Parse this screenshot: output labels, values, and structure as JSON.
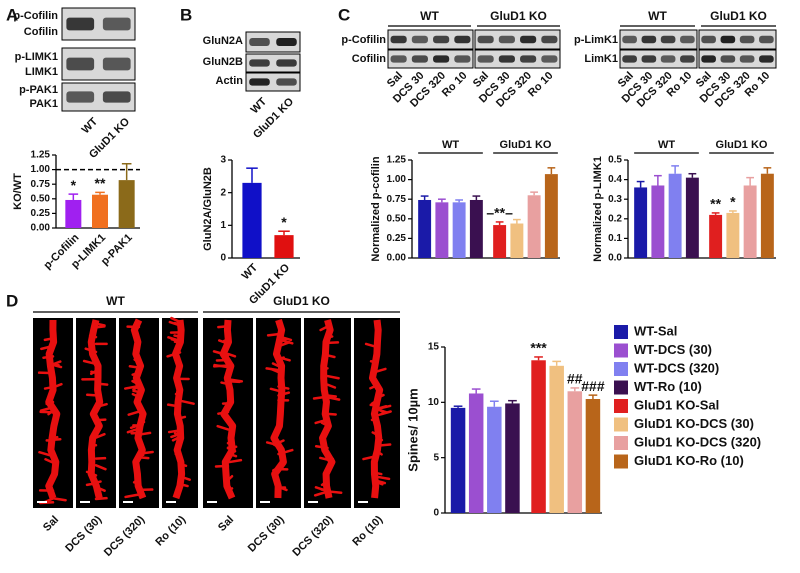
{
  "panel_labels": {
    "a": "A",
    "b": "B",
    "c": "C",
    "d": "D"
  },
  "blot_a": {
    "rows": [
      "p-Cofilin",
      "Cofilin",
      "p-LIMK1",
      "LIMK1",
      "p-PAK1",
      "PAK1"
    ],
    "lanes": [
      "WT",
      "GluD1 KO"
    ]
  },
  "blot_b": {
    "rows": [
      "GluN2A",
      "GluN2B",
      "Actin"
    ],
    "lanes": [
      "WT",
      "GluD1 KO"
    ]
  },
  "blot_c": [
    {
      "groups": [
        "WT",
        "GluD1 KO"
      ],
      "rows": [
        "p-Cofilin",
        "Cofilin"
      ],
      "lanes": [
        "Sal",
        "DCS 30",
        "DCS 320",
        "Ro 10",
        "Sal",
        "DCS 30",
        "DCS 320",
        "Ro 10"
      ]
    },
    {
      "groups": [
        "WT",
        "GluD1 KO"
      ],
      "rows": [
        "p-LimK1",
        "LimK1"
      ],
      "lanes": [
        "Sal",
        "DCS 30",
        "DCS 320",
        "Ro 10",
        "Sal",
        "DCS 30",
        "DCS 320",
        "Ro 10"
      ]
    }
  ],
  "images_d": {
    "groups": [
      "WT",
      "GluD1 KO"
    ],
    "lanes": [
      "Sal",
      "DCS (30)",
      "DCS (320)",
      "Ro (10)",
      "Sal",
      "DCS (30)",
      "DCS (320)",
      "Ro (10)"
    ]
  },
  "chart_data": [
    {
      "type": "bar",
      "ylabel": "KO/WT",
      "categories": [
        "p-Cofilin",
        "p-LIMK1",
        "p-PAK1"
      ],
      "values": [
        0.48,
        0.57,
        0.82
      ],
      "errors": [
        0.1,
        0.04,
        0.28
      ],
      "colors": [
        "#a020f0",
        "#f07020",
        "#8b6a1a"
      ],
      "ylim": [
        0,
        1.25
      ],
      "yticks": [
        {
          "value": 0,
          "label": "0.00"
        },
        {
          "value": 0.25,
          "label": "0.25"
        },
        {
          "value": 0.5,
          "label": "0.50"
        },
        {
          "value": 0.75,
          "label": "0.75"
        },
        {
          "value": 1,
          "label": "1.00"
        },
        {
          "value": 1.25,
          "label": "1.25"
        }
      ],
      "reference_line": 1,
      "significance": [
        "*",
        "**",
        null
      ]
    },
    {
      "type": "bar",
      "ylabel": "GluN2A/GluN2B",
      "categories": [
        "WT",
        "GluD1 KO"
      ],
      "values": [
        2.3,
        0.7
      ],
      "errors": [
        0.45,
        0.12
      ],
      "colors": [
        "#1010c8",
        "#e01010"
      ],
      "ylim": [
        0,
        3
      ],
      "yticks": [
        0,
        1,
        2,
        3
      ],
      "significance": [
        null,
        "*"
      ]
    },
    {
      "type": "bar",
      "ylabel": "Normalized p-cofilin",
      "groups": [
        "WT",
        "GluD1 KO"
      ],
      "values": [
        0.74,
        0.71,
        0.71,
        0.74,
        0.42,
        0.44,
        0.8,
        1.07
      ],
      "errors": [
        0.05,
        0.04,
        0.03,
        0.05,
        0.04,
        0.05,
        0.04,
        0.08
      ],
      "colors": [
        "#1a1aa8",
        "#9b4fd0",
        "#8080f0",
        "#3a1050",
        "#e01f1f",
        "#f0c080",
        "#e8a0a0",
        "#b8651a"
      ],
      "ylim": [
        0,
        1.25
      ],
      "yticks": [
        {
          "value": 0,
          "label": "0.00"
        },
        {
          "value": 0.25,
          "label": "0.25"
        },
        {
          "value": 0.5,
          "label": "0.50"
        },
        {
          "value": 0.75,
          "label": "0.75"
        },
        {
          "value": 1,
          "label": "1.00"
        },
        {
          "value": 1.25,
          "label": "1.25"
        }
      ],
      "significance": [
        null,
        null,
        null,
        null,
        "–**–",
        null,
        null,
        null
      ]
    },
    {
      "type": "bar",
      "ylabel": "Normalized p-LIMK1",
      "groups": [
        "WT",
        "GluD1 KO"
      ],
      "values": [
        0.36,
        0.37,
        0.43,
        0.41,
        0.22,
        0.23,
        0.37,
        0.43
      ],
      "errors": [
        0.03,
        0.05,
        0.04,
        0.02,
        0.01,
        0.01,
        0.04,
        0.03
      ],
      "colors": [
        "#1a1aa8",
        "#9b4fd0",
        "#8080f0",
        "#3a1050",
        "#e01f1f",
        "#f0c080",
        "#e8a0a0",
        "#b8651a"
      ],
      "ylim": [
        0,
        0.5
      ],
      "yticks": [
        {
          "value": 0,
          "label": "0.0"
        },
        {
          "value": 0.1,
          "label": "0.1"
        },
        {
          "value": 0.2,
          "label": "0.2"
        },
        {
          "value": 0.3,
          "label": "0.3"
        },
        {
          "value": 0.4,
          "label": "0.4"
        },
        {
          "value": 0.5,
          "label": "0.5"
        }
      ],
      "significance": [
        null,
        null,
        null,
        null,
        "**",
        "*",
        null,
        null
      ]
    },
    {
      "type": "bar",
      "ylabel": "Spines/ 10µm",
      "values": [
        9.5,
        10.8,
        9.6,
        9.9,
        13.8,
        13.3,
        11.0,
        10.3
      ],
      "errors": [
        0.15,
        0.4,
        0.5,
        0.25,
        0.3,
        0.4,
        0.3,
        0.35
      ],
      "colors": [
        "#1a1aa8",
        "#9b4fd0",
        "#8080f0",
        "#3a1050",
        "#e01f1f",
        "#f0c080",
        "#e8a0a0",
        "#b8651a"
      ],
      "ylim": [
        0,
        15
      ],
      "yticks": [
        0,
        5,
        10,
        15
      ],
      "significance": [
        null,
        null,
        null,
        null,
        "***",
        null,
        "##",
        "###"
      ],
      "legend": [
        "WT-Sal",
        "WT-DCS (30)",
        "WT-DCS (320)",
        "WT-Ro (10)",
        "GluD1 KO-Sal",
        "GluD1 KO-DCS (30)",
        "GluD1 KO-DCS (320)",
        "GluD1 KO-Ro (10)"
      ]
    }
  ]
}
